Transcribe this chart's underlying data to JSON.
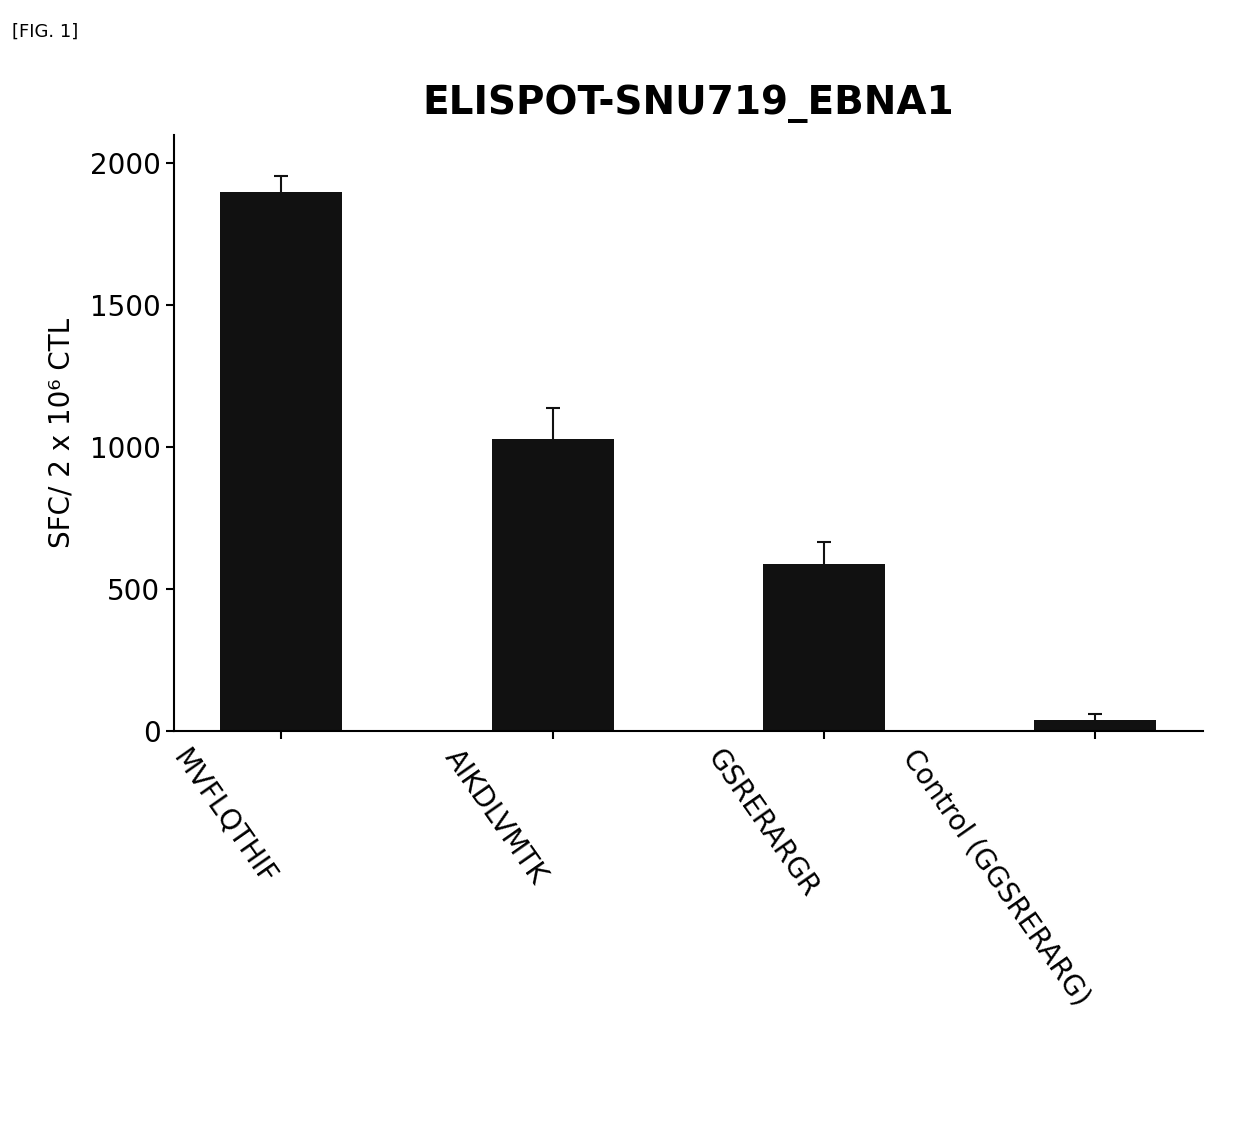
{
  "title": "ELISPOT-SNU719_EBNA1",
  "categories": [
    "MVFLQTHIF",
    "AIKDLVMTK",
    "GSRERARGR",
    "Control (GGSRERARG)"
  ],
  "values": [
    1900,
    1030,
    590,
    40
  ],
  "errors": [
    55,
    110,
    75,
    20
  ],
  "bar_color": "#111111",
  "ylabel": "SFC/ 2 x 10⁶ CTL",
  "ylim": [
    0,
    2100
  ],
  "yticks": [
    0,
    500,
    1000,
    1500,
    2000
  ],
  "background_color": "#ffffff",
  "title_fontsize": 28,
  "tick_fontsize": 20,
  "ylabel_fontsize": 20,
  "fig_label": "[FIG. 1]",
  "bar_width": 0.45,
  "label_rotation": -55
}
